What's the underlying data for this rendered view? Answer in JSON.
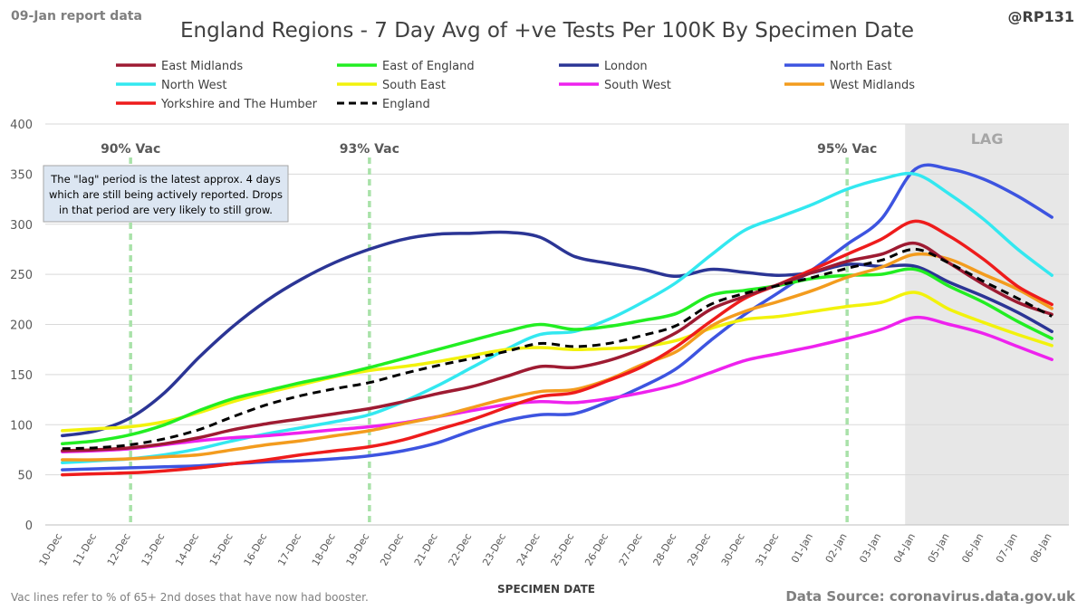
{
  "corner_label": "09-Jan report data",
  "handle": "@RP131",
  "footnote": "Vac lines refer to % of 65+ 2nd doses that have now had booster.",
  "source": "Data Source: coronavirus.data.gov.uk",
  "lag_note": [
    "The \"lag\" period is the latest approx. 4 days",
    "which are still being actively reported. Drops",
    "in that period are very likely to still grow."
  ],
  "chart_data": {
    "type": "line",
    "title": "England Regions - 7 Day Avg of +ve Tests Per 100K By Specimen Date",
    "xlabel": "SPECIMEN DATE",
    "ylabel": "",
    "ylim": [
      0,
      400
    ],
    "yticks": [
      0,
      50,
      100,
      150,
      200,
      250,
      300,
      350,
      400
    ],
    "grid": true,
    "legend_position": "top",
    "x": [
      "10-Dec",
      "11-Dec",
      "12-Dec",
      "13-Dec",
      "14-Dec",
      "15-Dec",
      "16-Dec",
      "17-Dec",
      "18-Dec",
      "19-Dec",
      "20-Dec",
      "21-Dec",
      "22-Dec",
      "23-Dec",
      "24-Dec",
      "25-Dec",
      "26-Dec",
      "27-Dec",
      "28-Dec",
      "29-Dec",
      "30-Dec",
      "31-Dec",
      "01-Jan",
      "02-Jan",
      "03-Jan",
      "04-Jan",
      "05-Jan",
      "06-Jan",
      "07-Jan",
      "08-Jan"
    ],
    "lag_region": {
      "from": "04-Jan",
      "to": "08-Jan",
      "label": "LAG"
    },
    "vac_lines": [
      {
        "at": "12-Dec",
        "label": "90% Vac"
      },
      {
        "at": "19-Dec",
        "label": "93% Vac"
      },
      {
        "at": "02-Jan",
        "label": "95% Vac"
      }
    ],
    "series": [
      {
        "name": "East Midlands",
        "color": "#9e1b32",
        "dashed": false,
        "values": [
          74,
          75,
          77,
          81,
          87,
          95,
          101,
          106,
          111,
          116,
          123,
          131,
          138,
          148,
          158,
          157,
          164,
          176,
          192,
          215,
          228,
          240,
          252,
          263,
          270,
          281,
          261,
          240,
          222,
          210
        ]
      },
      {
        "name": "East of England",
        "color": "#22ee22",
        "dashed": false,
        "values": [
          81,
          84,
          90,
          100,
          114,
          126,
          134,
          142,
          149,
          157,
          166,
          175,
          184,
          193,
          200,
          195,
          198,
          204,
          211,
          229,
          234,
          239,
          246,
          249,
          250,
          255,
          238,
          222,
          203,
          186
        ]
      },
      {
        "name": "London",
        "color": "#2b3595",
        "dashed": false,
        "values": [
          89,
          94,
          107,
          132,
          167,
          198,
          224,
          245,
          262,
          275,
          285,
          290,
          291,
          292,
          287,
          268,
          261,
          255,
          248,
          255,
          252,
          249,
          252,
          260,
          258,
          258,
          242,
          228,
          212,
          193
        ]
      },
      {
        "name": "North East",
        "color": "#3d54e0",
        "dashed": false,
        "values": [
          55,
          56,
          57,
          58,
          59,
          61,
          63,
          64,
          66,
          69,
          74,
          82,
          94,
          104,
          110,
          111,
          123,
          138,
          156,
          184,
          210,
          232,
          255,
          280,
          305,
          355,
          355,
          345,
          328,
          307
        ]
      },
      {
        "name": "North West",
        "color": "#33e8f0",
        "dashed": false,
        "values": [
          62,
          64,
          66,
          70,
          76,
          84,
          91,
          97,
          103,
          110,
          123,
          139,
          157,
          175,
          190,
          193,
          205,
          222,
          242,
          269,
          294,
          307,
          320,
          335,
          345,
          350,
          330,
          305,
          275,
          249
        ]
      },
      {
        "name": "South East",
        "color": "#f2f20c",
        "dashed": false,
        "values": [
          94,
          96,
          98,
          103,
          112,
          123,
          132,
          140,
          148,
          154,
          158,
          163,
          169,
          175,
          177,
          175,
          176,
          178,
          184,
          196,
          205,
          208,
          213,
          218,
          222,
          232,
          215,
          202,
          190,
          179
        ]
      },
      {
        "name": "South West",
        "color": "#ee22ee",
        "dashed": false,
        "values": [
          73,
          74,
          76,
          80,
          84,
          87,
          89,
          92,
          95,
          98,
          102,
          108,
          114,
          120,
          123,
          122,
          126,
          132,
          140,
          152,
          164,
          171,
          178,
          186,
          195,
          207,
          200,
          191,
          178,
          165
        ]
      },
      {
        "name": "West Midlands",
        "color": "#f39c1e",
        "dashed": false,
        "values": [
          65,
          65,
          66,
          68,
          70,
          75,
          80,
          84,
          89,
          94,
          101,
          108,
          117,
          126,
          133,
          135,
          145,
          160,
          173,
          198,
          213,
          223,
          234,
          247,
          257,
          270,
          265,
          250,
          235,
          216
        ]
      },
      {
        "name": "Yorkshire and The Humber",
        "color": "#ee1c1c",
        "dashed": false,
        "values": [
          50,
          51,
          52,
          54,
          57,
          61,
          65,
          70,
          74,
          78,
          85,
          95,
          105,
          117,
          128,
          132,
          144,
          158,
          178,
          203,
          226,
          240,
          255,
          270,
          285,
          303,
          288,
          265,
          238,
          220
        ]
      },
      {
        "name": "England",
        "color": "#000000",
        "dashed": true,
        "values": [
          76,
          77,
          80,
          86,
          95,
          108,
          120,
          129,
          136,
          142,
          151,
          159,
          166,
          173,
          181,
          178,
          181,
          189,
          199,
          220,
          231,
          239,
          247,
          256,
          264,
          275,
          261,
          243,
          226,
          208
        ]
      }
    ]
  }
}
